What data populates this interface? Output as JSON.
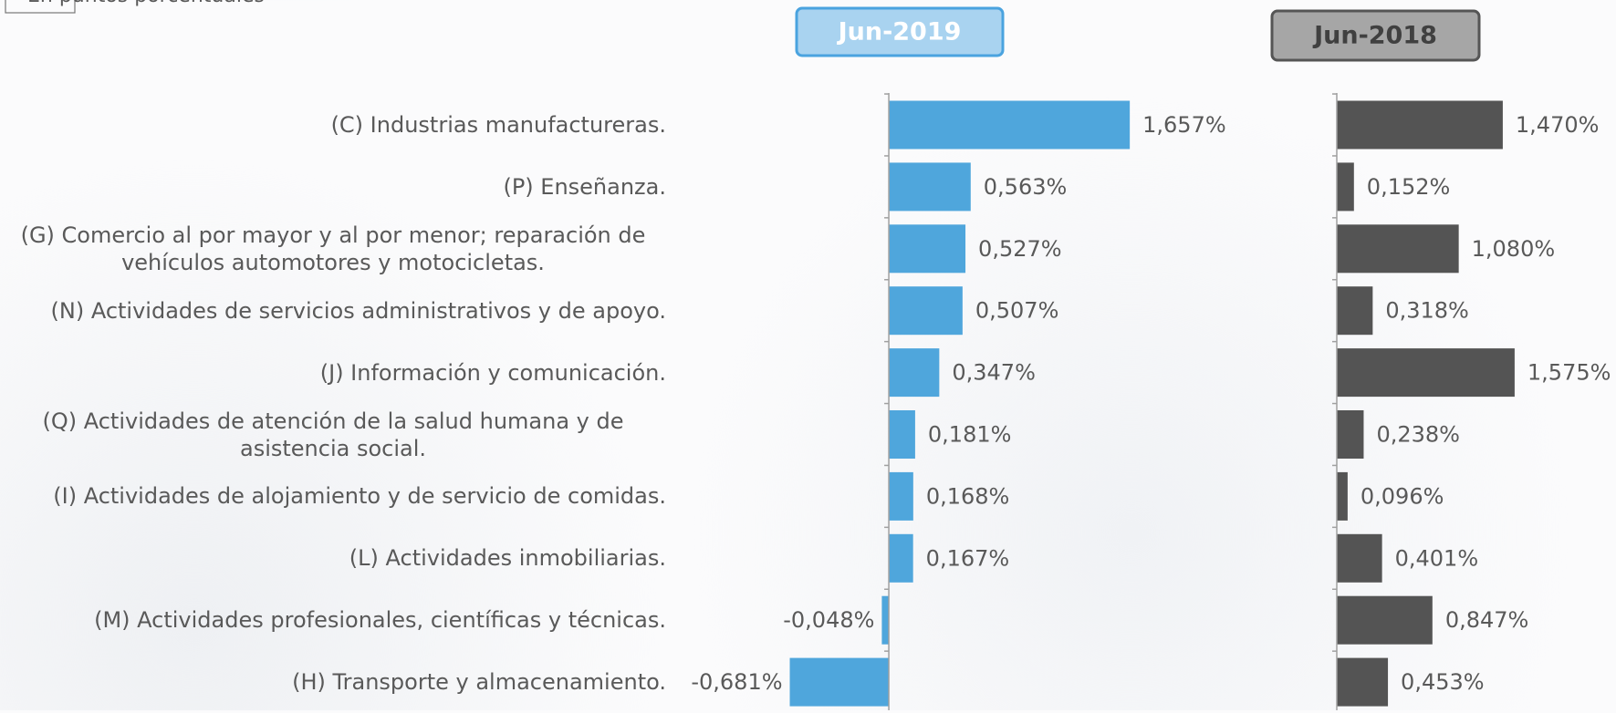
{
  "chart_data": [
    {
      "type": "bar",
      "orientation": "horizontal",
      "subtitle": "En puntos porcentuales",
      "title": "Jun-2019",
      "categories": [
        "(C) Industrias manufactureras.",
        "(P) Enseñanza.",
        "(G) Comercio al por mayor y al por menor; reparación de vehículos automotores y motocicletas.",
        "(N) Actividades de servicios administrativos y de apoyo.",
        "(J) Información y comunicación.",
        "(Q) Actividades de atención de la salud humana y de asistencia social.",
        "(I) Actividades de alojamiento y de servicio de comidas.",
        "(L) Actividades inmobiliarias.",
        "(M) Actividades profesionales, científicas y técnicas.",
        "(H) Transporte y almacenamiento."
      ],
      "values": [
        1.657,
        0.563,
        0.527,
        0.507,
        0.347,
        0.181,
        0.168,
        0.167,
        -0.048,
        -0.681
      ],
      "value_labels": [
        "1,657%",
        "0,563%",
        "0,527%",
        "0,507%",
        "0,347%",
        "0,181%",
        "0,168%",
        "0,167%",
        "-0,048%",
        "-0,681%"
      ],
      "color": "#4fa6dc",
      "xlim": [
        -0.7,
        1.7
      ]
    },
    {
      "type": "bar",
      "orientation": "horizontal",
      "title": "Jun-2018",
      "values": [
        1.47,
        0.152,
        1.08,
        0.318,
        1.575,
        0.238,
        0.096,
        0.401,
        0.847,
        0.453
      ],
      "value_labels": [
        "1,470%",
        "0,152%",
        "1,080%",
        "0,318%",
        "1,575%",
        "0,238%",
        "0,096%",
        "0,401%",
        "0,847%",
        "0,453%"
      ],
      "color": "#545454",
      "xlim": [
        0,
        1.6
      ]
    }
  ]
}
